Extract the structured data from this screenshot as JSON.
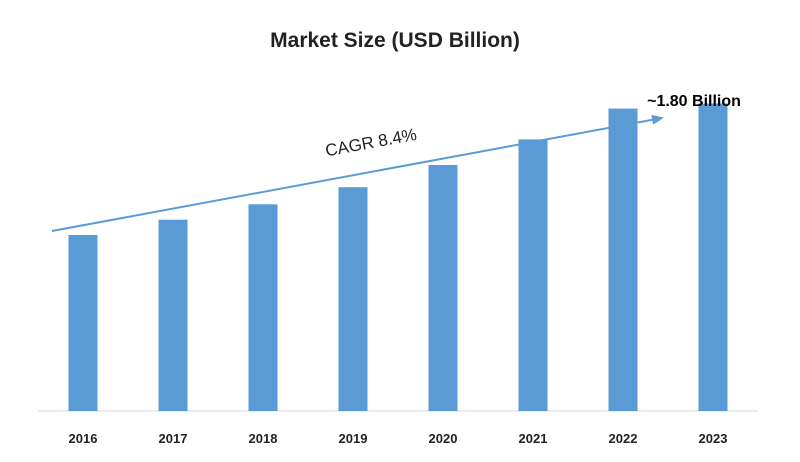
{
  "chart_data": {
    "type": "bar",
    "title": "Market Size (USD Billion)",
    "xlabel": "",
    "ylabel": "",
    "categories": [
      "2016",
      "2017",
      "2018",
      "2019",
      "2020",
      "2021",
      "2022",
      "2023"
    ],
    "values": [
      1.03,
      1.12,
      1.21,
      1.31,
      1.44,
      1.59,
      1.77,
      1.8
    ],
    "ylim": [
      0,
      2.4
    ],
    "grid": false,
    "legend": "none",
    "bar_color": "#5b9bd5",
    "annotations": {
      "last_bar_label": "~1.80 Billion",
      "trend_label": "CAGR 8.4%"
    }
  }
}
